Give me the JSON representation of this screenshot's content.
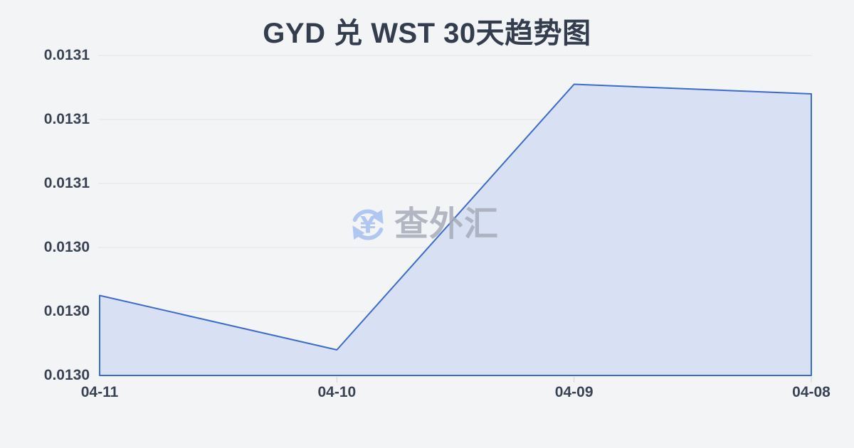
{
  "page": {
    "background": "#f2f4f6"
  },
  "header": {
    "title": "GYD 兑 WST 30天趋势图",
    "title_color": "#333d4e"
  },
  "watermark": {
    "text": "查外汇",
    "icon": "currency-exchange-icon",
    "icon_color": "#a5c1f1",
    "text_color": "#a6acb9"
  },
  "chart_data": {
    "type": "area",
    "title": "GYD 兑 WST 30天趋势图",
    "categories": [
      "04-11",
      "04-10",
      "04-09",
      "04-08"
    ],
    "values": [
      0.013045,
      0.013028,
      0.013111,
      0.013108
    ],
    "xlabel": "",
    "ylabel": "",
    "ylim": [
      0.01302,
      0.01312
    ],
    "ytick_labels": [
      "0.0131",
      "0.0131",
      "0.0131",
      "0.0130",
      "0.0130",
      "0.0130"
    ],
    "grid": true,
    "legend": "none",
    "line_color": "#3c6bca",
    "fill_color": "#d8e1f4",
    "grid_color": "#e3e6ea",
    "tick_color": "#d2d5da",
    "axis_label_color": "#3a4353"
  }
}
